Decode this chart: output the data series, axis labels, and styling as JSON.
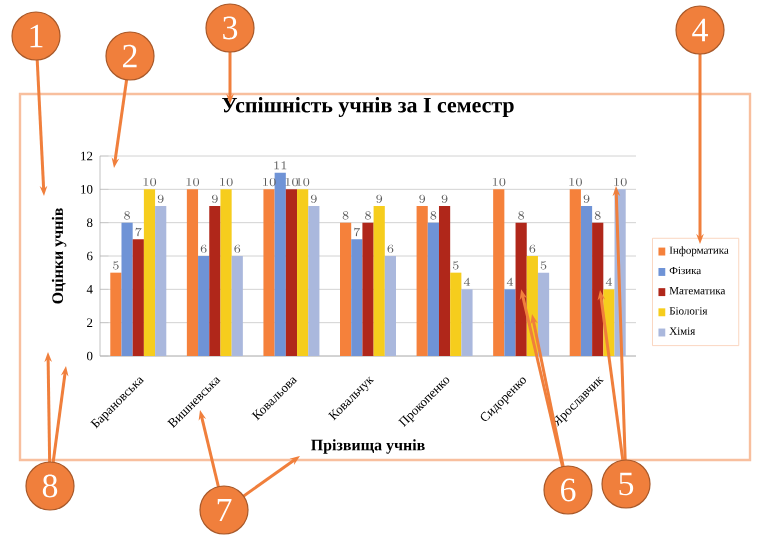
{
  "chart_data": {
    "type": "bar",
    "title": "Успішність учнів за І семестр",
    "xlabel": "Прізвища учнів",
    "ylabel": "Оцінки учнів",
    "categories": [
      "Барановська",
      "Вишневська",
      "Ковальова",
      "Ковальчук",
      "Прокопенко",
      "Сидоренко",
      "Ярославчик"
    ],
    "series": [
      {
        "name": "Інформатика",
        "color": "#f5813b",
        "values": [
          5,
          10,
          10,
          8,
          9,
          10,
          10
        ]
      },
      {
        "name": "Фізика",
        "color": "#6f93d6",
        "values": [
          8,
          6,
          11,
          7,
          8,
          4,
          9
        ]
      },
      {
        "name": "Математика",
        "color": "#b0271a",
        "values": [
          7,
          9,
          10,
          8,
          9,
          8,
          8
        ]
      },
      {
        "name": "Біологія",
        "color": "#f6cd1d",
        "values": [
          10,
          10,
          10,
          9,
          5,
          6,
          4
        ]
      },
      {
        "name": "Хімія",
        "color": "#aab8dd",
        "values": [
          9,
          6,
          9,
          6,
          4,
          5,
          10
        ]
      }
    ],
    "ylim": [
      0,
      12
    ],
    "yticks": [
      0,
      2,
      4,
      6,
      8,
      10,
      12
    ],
    "grid": "y",
    "legend": "right",
    "data_labels": true,
    "annotations": [
      "1",
      "2",
      "3",
      "4",
      "5",
      {
        "text": "6",
        "x": "Сидоренко",
        "y": 4
      },
      "7",
      "8"
    ]
  }
}
